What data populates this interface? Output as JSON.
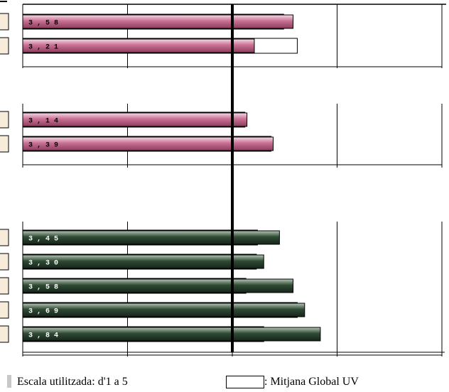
{
  "chart_data": {
    "type": "bar",
    "orientation": "horizontal",
    "xlim": [
      1,
      5
    ],
    "grid": true,
    "scale_note": "Escala utilitzada: d'1 a 5",
    "legend_label": ": Mitjana Global UV",
    "reference_value": 3.0,
    "colors": {
      "pink": "#c96f93",
      "green": "#2f4a34",
      "frame": "#000000"
    },
    "groups": [
      {
        "color": "pink",
        "bars": [
          {
            "label": "3 , 5 8",
            "value": 3.58,
            "global_mean": 3.49
          },
          {
            "label": "3 , 2 1",
            "value": 3.21,
            "global_mean": 3.62
          }
        ]
      },
      {
        "color": "pink",
        "bars": [
          {
            "label": "3 , 1 4",
            "value": 3.14,
            "global_mean": 3.12
          },
          {
            "label": "3 , 3 9",
            "value": 3.39,
            "global_mean": 3.37
          }
        ]
      },
      {
        "color": "green",
        "bars": [
          {
            "label": "3 , 4 5",
            "value": 3.45,
            "global_mean": 3.24
          },
          {
            "label": "3 , 3 0",
            "value": 3.3,
            "global_mean": 3.23
          },
          {
            "label": "3 , 5 8",
            "value": 3.58,
            "global_mean": 3.13
          },
          {
            "label": "3 , 6 9",
            "value": 3.69,
            "global_mean": 3.62
          },
          {
            "label": "3 , 8 4",
            "value": 3.84,
            "global_mean": 3.3
          }
        ]
      }
    ]
  }
}
